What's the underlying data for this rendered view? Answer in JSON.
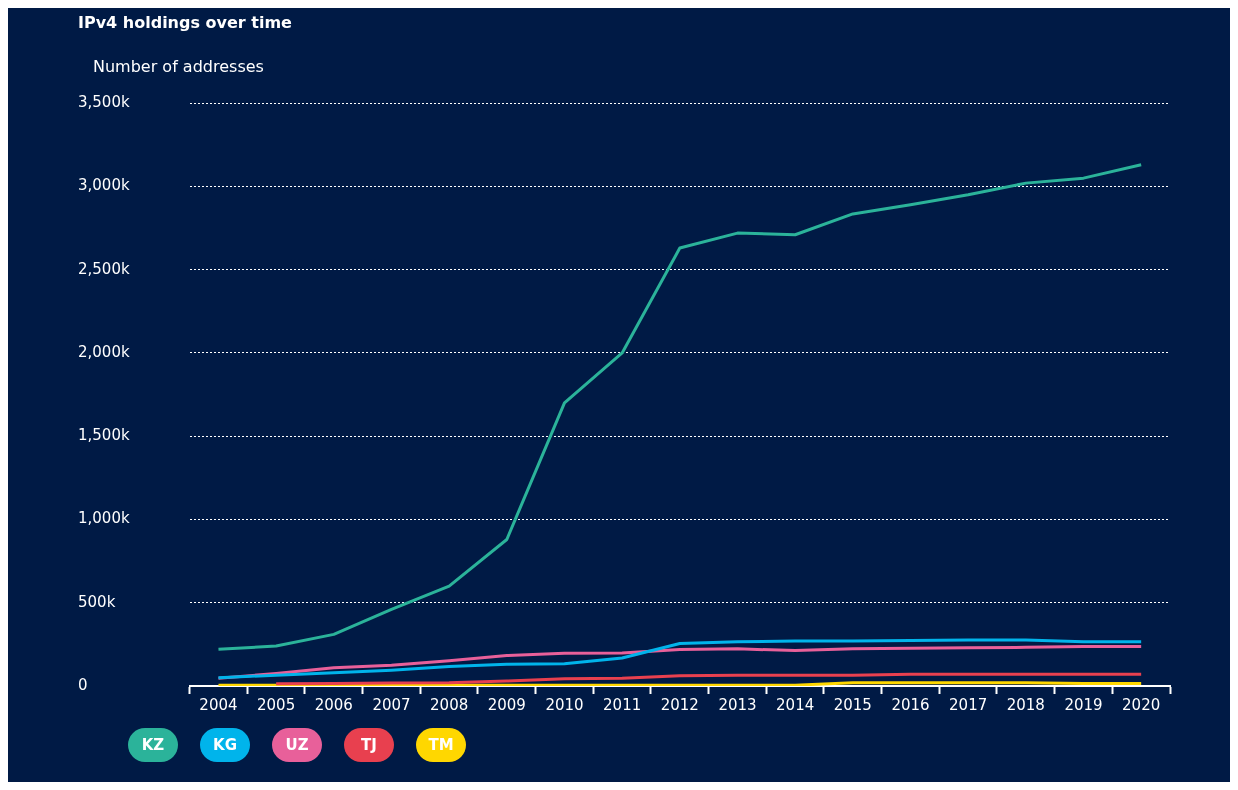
{
  "chart_data": {
    "type": "line",
    "title": "IPv4 holdings over time",
    "ylabel": "Number of addresses",
    "categories": [
      "2004",
      "2005",
      "2006",
      "2007",
      "2008",
      "2009",
      "2010",
      "2011",
      "2012",
      "2013",
      "2014",
      "2015",
      "2016",
      "2017",
      "2018",
      "2019",
      "2020"
    ],
    "series": [
      {
        "name": "KZ",
        "color": "#2bb39a",
        "values": [
          220,
          240,
          310,
          460,
          600,
          880,
          1700,
          2000,
          2630,
          2720,
          2710,
          2835,
          2890,
          2950,
          3020,
          3050,
          3130
        ]
      },
      {
        "name": "KG",
        "color": "#00b4eb",
        "values": [
          50,
          65,
          80,
          95,
          117,
          130,
          134,
          168,
          255,
          266,
          270,
          270,
          273,
          276,
          276,
          266,
          266
        ]
      },
      {
        "name": "UZ",
        "color": "#e8609a",
        "values": [
          47,
          75,
          110,
          124,
          152,
          183,
          197,
          198,
          219,
          223,
          213,
          223,
          227,
          230,
          232,
          237,
          237
        ]
      },
      {
        "name": "TJ",
        "color": "#e8404f",
        "values": [
          null,
          14,
          15,
          18,
          20,
          30,
          43,
          46,
          61,
          65,
          65,
          65,
          71,
          70,
          70,
          70,
          70
        ]
      },
      {
        "name": "TM",
        "color": "#ffd700",
        "values": [
          5,
          5,
          5,
          5,
          5,
          5,
          5,
          5,
          5,
          5,
          5,
          20,
          20,
          20,
          20,
          15,
          15
        ]
      }
    ],
    "ylim": [
      0,
      3500
    ],
    "yticks": [
      0,
      {
        "value": 500,
        "label": "500k"
      },
      {
        "value": 1000,
        "label": "1,000k"
      },
      {
        "value": 1500,
        "label": "1,500k"
      },
      {
        "value": 2000,
        "label": "2,000k"
      },
      {
        "value": 2500,
        "label": "2,500k"
      },
      {
        "value": 3000,
        "label": "3,000k"
      },
      {
        "value": 3500,
        "label": "3,500k"
      }
    ],
    "grid": "y",
    "legend": "bottom left",
    "marker": "none",
    "line_style": "solid"
  }
}
